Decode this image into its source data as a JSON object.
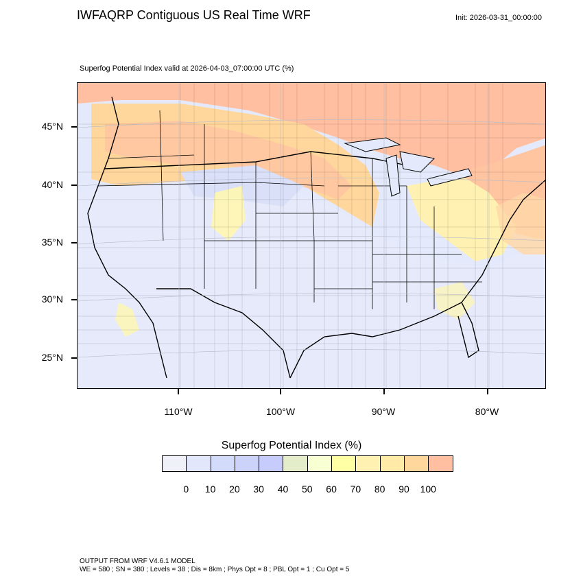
{
  "header": {
    "title": "IWFAQRP Contiguous US Real Time WRF",
    "init": "Init: 2026-03-31_00:00:00"
  },
  "map": {
    "subtitle": "Superfog Potential Index valid at 2026-04-03_07:00:00 UTC   (%)",
    "lat_labels": [
      "45°N",
      "40°N",
      "35°N",
      "30°N",
      "25°N"
    ],
    "lon_labels": [
      "110°W",
      "100°W",
      "90°W",
      "80°W"
    ],
    "colors": {
      "ocean_low": "#e6ecfb",
      "low": "#e9edfa",
      "low_mid": "#d7def8",
      "yellow": "#fff7b0",
      "orange": "#ffd9a0",
      "salmon": "#ffbfa0"
    }
  },
  "colorbar": {
    "title": "Superfog Potential Index  (%)",
    "colors": [
      "#eef1f8",
      "#e3e7fb",
      "#d3dbfa",
      "#cbd3fb",
      "#c6cdfd",
      "#e3edc9",
      "#f7ffd3",
      "#ffffa6",
      "#fff1b2",
      "#ffeaa8",
      "#ffd79c",
      "#ffbfa0"
    ],
    "labels": [
      "0",
      "10",
      "20",
      "30",
      "40",
      "50",
      "60",
      "70",
      "80",
      "90",
      "100"
    ]
  },
  "footer": {
    "line1": "OUTPUT FROM WRF V4.6.1 MODEL",
    "line2": "WE = 580 ; SN = 380 ; Levels = 38 ; Dis = 8km ; Phys Opt = 8 ; PBL Opt = 1 ; Cu Opt = 5"
  }
}
